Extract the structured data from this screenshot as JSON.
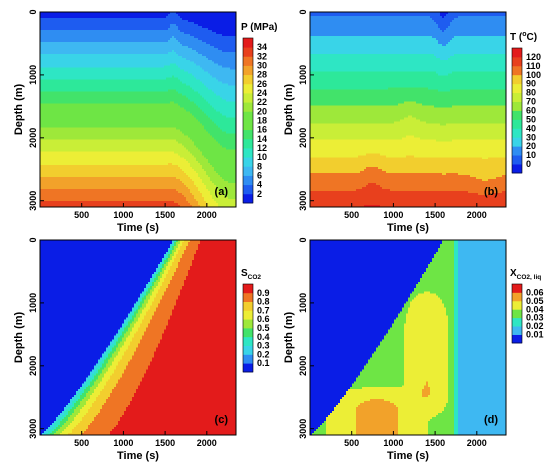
{
  "chart_data": [
    {
      "type": "heatmap",
      "panel_label": "(a)",
      "xlabel": "Time (s)",
      "ylabel": "Depth (m)",
      "xlim": [
        0,
        2350
      ],
      "ylim": [
        3100,
        0
      ],
      "x_ticks": [
        500,
        1000,
        1500,
        2000
      ],
      "y_ticks": [
        0,
        1000,
        2000,
        3000
      ],
      "colorbar": {
        "title_main": "P",
        "title_sup": "",
        "title_sub": "",
        "title_unit": " (MPa)",
        "levels": [
          2,
          4,
          6,
          8,
          10,
          12,
          14,
          16,
          18,
          20,
          22,
          24,
          26,
          28,
          30,
          32,
          34
        ]
      },
      "field": "Pressure rises roughly linearly with depth from about 1 MPa at the top to about 33 MPa at the bottom; after about 1600 s the contours bend upward and pressure drops by about 6-10 MPa toward 2300 s."
    },
    {
      "type": "heatmap",
      "panel_label": "(b)",
      "xlabel": "Time (s)",
      "ylabel": "Depth (m)",
      "xlim": [
        0,
        2350
      ],
      "ylim": [
        3100,
        0
      ],
      "x_ticks": [
        500,
        1000,
        1500,
        2000
      ],
      "y_ticks": [
        0,
        1000,
        2000,
        3000
      ],
      "colorbar": {
        "title_main": "T",
        "title_sup": "o",
        "title_sub": "",
        "title_unit": "C)",
        "title_prefix": " (",
        "levels": [
          0,
          10,
          20,
          30,
          40,
          50,
          60,
          70,
          80,
          90,
          100,
          110,
          120
        ]
      },
      "field": "Temperature increases with depth from about 10 °C near the surface to about 120 °C at 3100 m; a cusp of cooler fluid appears near 1600 s at the surface and small bumps around 750 s and 1200 s."
    },
    {
      "type": "heatmap",
      "panel_label": "(c)",
      "xlabel": "Time (s)",
      "ylabel": "Depth (m)",
      "xlim": [
        0,
        2350
      ],
      "ylim": [
        3100,
        0
      ],
      "x_ticks": [
        500,
        1000,
        1500,
        2000
      ],
      "y_ticks": [
        0,
        1000,
        2000,
        3000
      ],
      "colorbar": {
        "title_main": "S",
        "title_sup": "",
        "title_sub": "CO2",
        "title_unit": "",
        "levels": [
          0.1,
          0.2,
          0.3,
          0.4,
          0.5,
          0.6,
          0.7,
          0.8,
          0.9
        ]
      },
      "field": "CO2 saturation front advances upward from 3100 m at time 0 to the surface at about 1600 s; saturation is about 0.05 ahead of the front and rises to about 0.95 behind it."
    },
    {
      "type": "heatmap",
      "panel_label": "(d)",
      "xlabel": "Time (s)",
      "ylabel": "Depth (m)",
      "xlim": [
        0,
        2350
      ],
      "ylim": [
        3100,
        0
      ],
      "x_ticks": [
        500,
        1000,
        1500,
        2000
      ],
      "y_ticks": [
        0,
        1000,
        2000,
        3000
      ],
      "colorbar": {
        "title_main": "X",
        "title_sup": "",
        "title_sub": "CO2, liq",
        "title_unit": "",
        "levels": [
          0.01,
          0.02,
          0.03,
          0.04,
          0.05,
          0.06
        ]
      },
      "field": "Dissolved CO2 mass fraction in the liquid is near 0.005 ahead of the front, about 0.04 just behind it, reaches about 0.055 in a lobe around 500-1200 s below 2400 m, and falls to about 0.02 after 1700 s."
    }
  ]
}
